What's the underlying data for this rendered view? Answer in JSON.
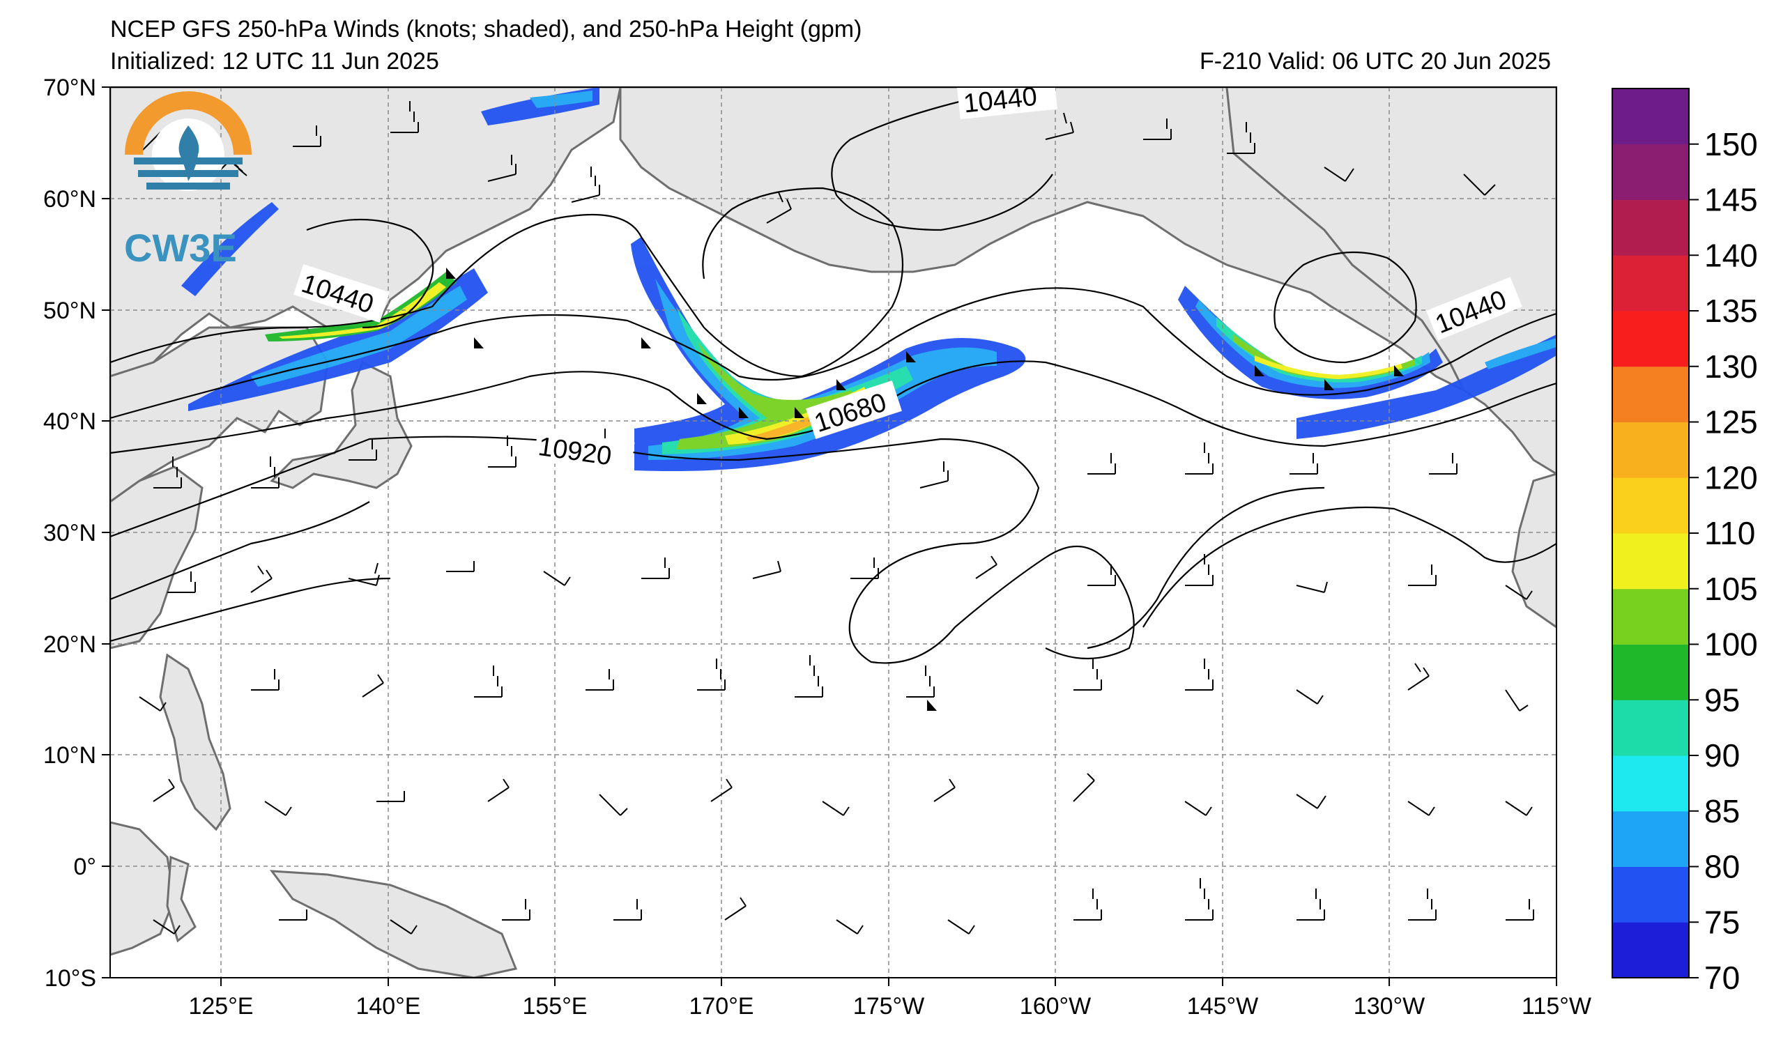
{
  "header": {
    "title": "NCEP GFS 250-hPa Winds (knots; shaded), and 250-hPa Height (gpm)",
    "initialized": "Initialized: 12 UTC 11 Jun 2025",
    "valid": "F-210  Valid: 06 UTC 20 Jun 2025"
  },
  "logo": {
    "text": "CW3E"
  },
  "map": {
    "lat_labels": [
      "70°N",
      "60°N",
      "50°N",
      "40°N",
      "30°N",
      "20°N",
      "10°N",
      "0°",
      "10°S"
    ],
    "lon_labels": [
      "125°E",
      "140°E",
      "155°E",
      "170°E",
      "175°W",
      "160°W",
      "145°W",
      "130°W",
      "115°W"
    ],
    "contour_labels": [
      "10440",
      "10440",
      "10440",
      "10680",
      "10920"
    ],
    "extent": {
      "lon_min": 115,
      "lon_max": 245,
      "lat_min": -10,
      "lat_max": 70
    },
    "land_color": "#e6e6e6",
    "coast_color": "#6e6e6e"
  },
  "colorbar": {
    "ticks": [
      "70",
      "75",
      "80",
      "85",
      "90",
      "95",
      "100",
      "105",
      "110",
      "120",
      "125",
      "130",
      "135",
      "140",
      "145",
      "150"
    ],
    "colors": [
      "#1d1ed8",
      "#2253f2",
      "#1fa5f5",
      "#1de9ef",
      "#1ddcaa",
      "#1fb82b",
      "#77d11e",
      "#f0f01e",
      "#fbd01c",
      "#f9b01f",
      "#f4801f",
      "#f91e1e",
      "#dc2036",
      "#b11d4e",
      "#8c1e72",
      "#6d1c88"
    ]
  }
}
